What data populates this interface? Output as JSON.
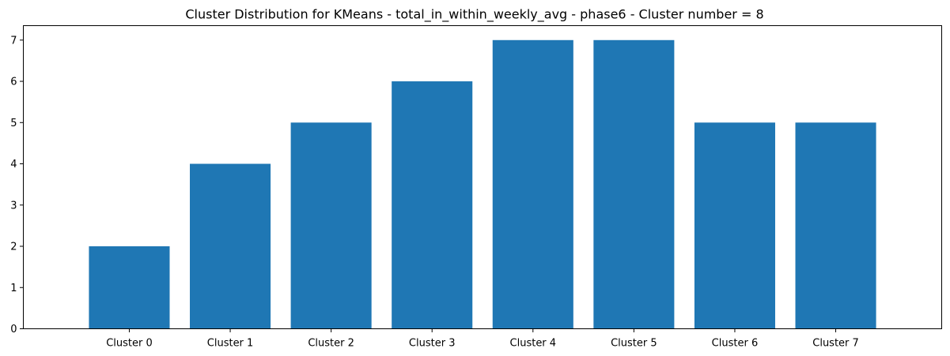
{
  "chart_data": {
    "type": "bar",
    "title": "Cluster Distribution for KMeans - total_in_within_weekly_avg - phase6 - Cluster number = 8",
    "xlabel": "",
    "ylabel": "",
    "categories": [
      "Cluster 0",
      "Cluster 1",
      "Cluster 2",
      "Cluster 3",
      "Cluster 4",
      "Cluster 5",
      "Cluster 6",
      "Cluster 7"
    ],
    "values": [
      2,
      4,
      5,
      6,
      7,
      7,
      5,
      5
    ],
    "ylim": [
      0,
      7.35
    ],
    "yticks": [
      0,
      1,
      2,
      3,
      4,
      5,
      6,
      7
    ],
    "grid": false,
    "bar_color": "#1f77b4"
  }
}
